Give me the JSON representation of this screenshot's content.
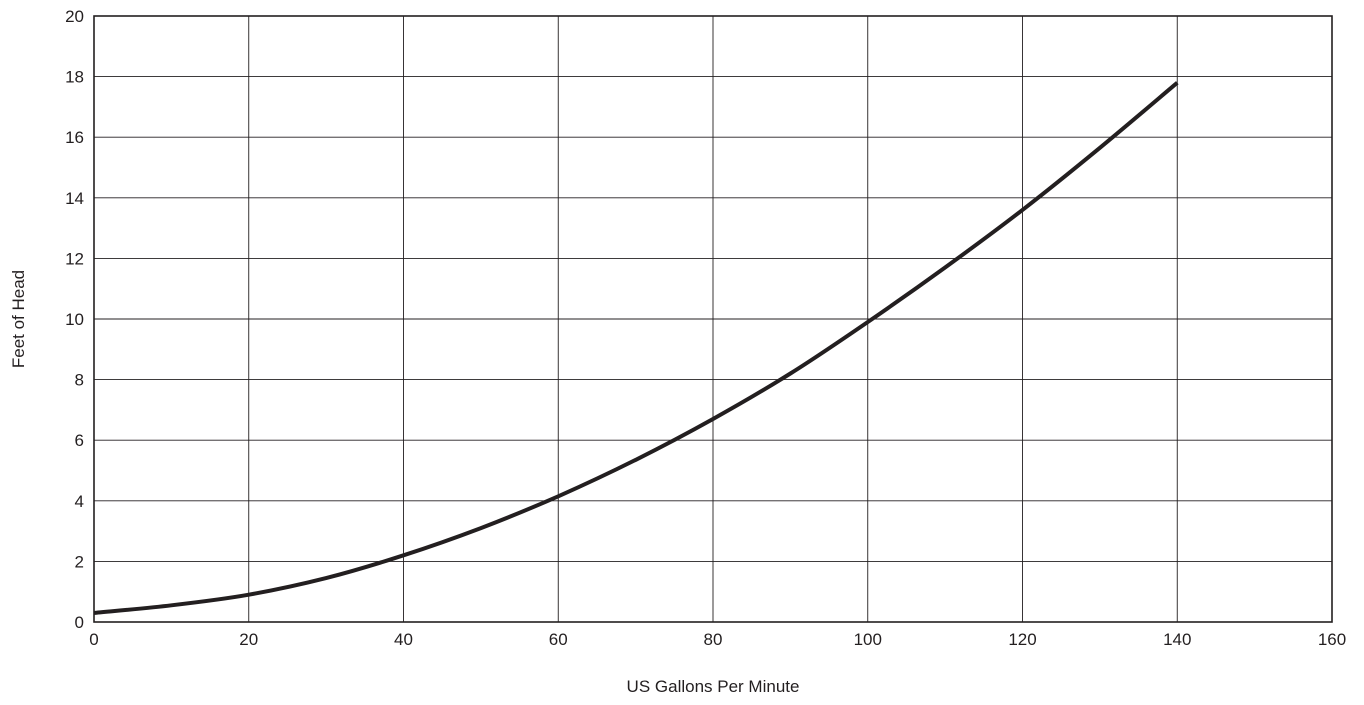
{
  "chart_data": {
    "type": "line",
    "title": "",
    "xlabel": "US Gallons Per Minute",
    "ylabel": "Feet of Head",
    "xlim": [
      0,
      160
    ],
    "ylim": [
      0,
      20
    ],
    "xticks": [
      0,
      20,
      40,
      60,
      80,
      100,
      120,
      140,
      160
    ],
    "yticks": [
      0,
      2,
      4,
      6,
      8,
      10,
      12,
      14,
      16,
      18,
      20
    ],
    "xtick_labels": [
      "0",
      "20",
      "40",
      "60",
      "80",
      "100",
      "120",
      "140",
      "160"
    ],
    "ytick_labels": [
      "0",
      "2",
      "4",
      "6",
      "8",
      "10",
      "12",
      "14",
      "16",
      "18",
      "20"
    ],
    "grid": true,
    "legend": "none",
    "line_color": "#231f20",
    "grid_color": "#231f20",
    "series": [
      {
        "x": [
          0,
          10,
          20,
          30,
          40,
          50,
          60,
          70,
          80,
          90,
          100,
          110,
          120,
          130,
          140
        ],
        "y": [
          0.3,
          0.55,
          0.9,
          1.45,
          2.2,
          3.1,
          4.15,
          5.35,
          6.7,
          8.2,
          9.9,
          11.7,
          13.6,
          15.65,
          17.8
        ]
      }
    ]
  }
}
